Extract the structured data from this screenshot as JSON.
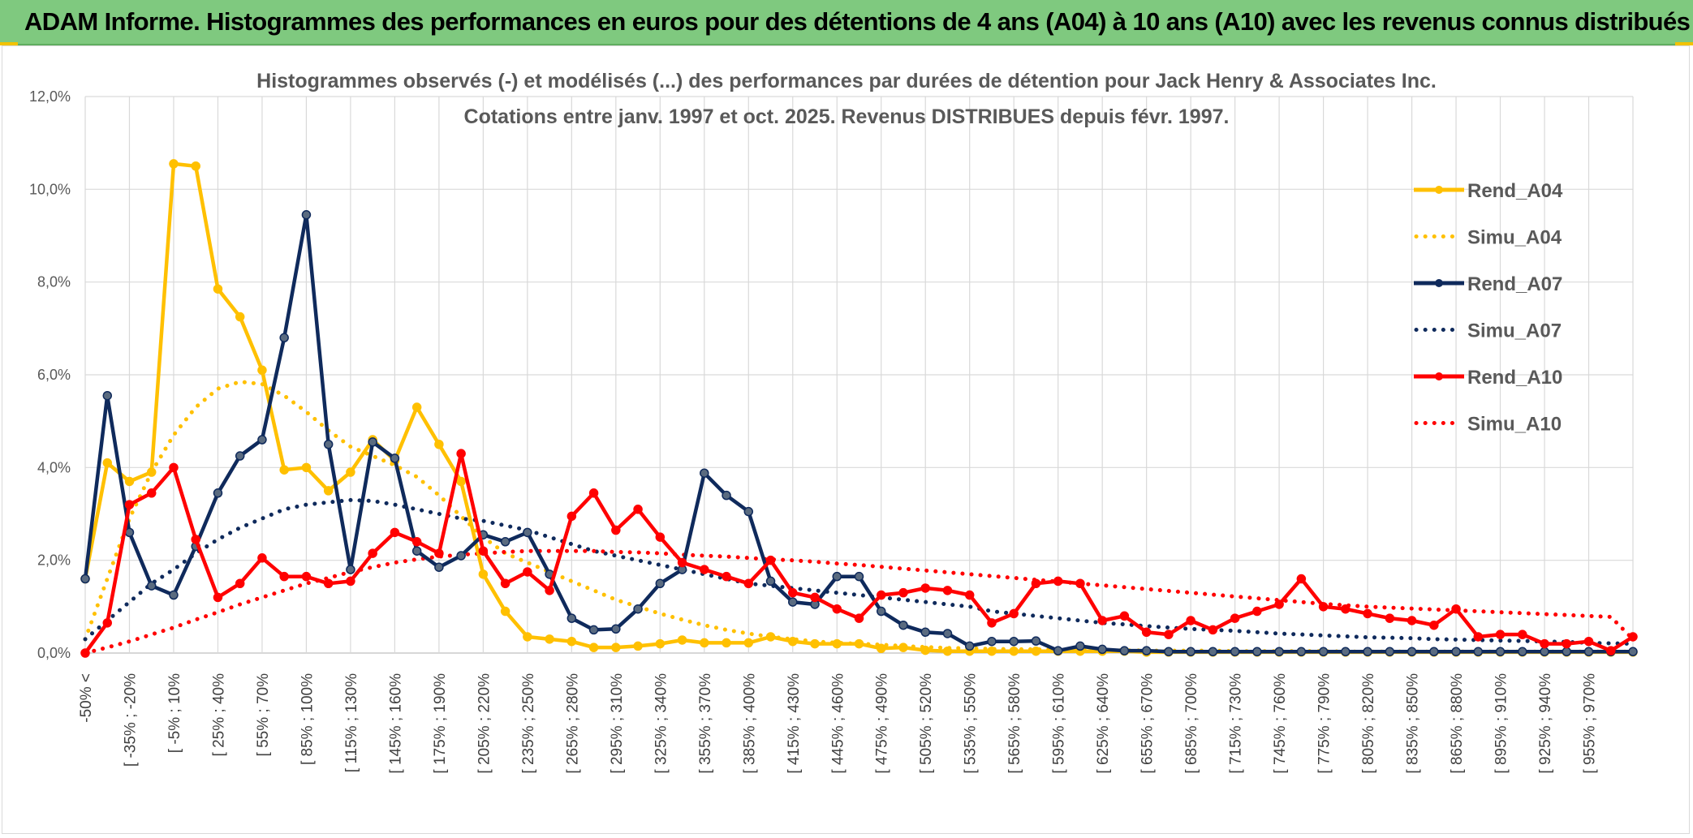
{
  "header": {
    "title": "ADAM Informe. Histogrammes des performances en euros pour des détentions de 4 ans (A04) à 10 ans (A10) avec les revenus connus distribués"
  },
  "colors": {
    "banner": "#7fc97f",
    "A04": "#ffc000",
    "A07": "#0f2a5c",
    "A10": "#ff0000",
    "grid": "#d9d9d9"
  },
  "chart_data": {
    "type": "line",
    "title": "Histogrammes observés (-) et modélisés (...) des performances par durées de détention pour Jack Henry & Associates Inc.",
    "subtitle": "Cotations entre janv. 1997 et oct. 2025. Revenus DISTRIBUES depuis févr. 1997.",
    "ylim": [
      0,
      12
    ],
    "y_ticks": [
      "0,0%",
      "2,0%",
      "4,0%",
      "6,0%",
      "8,0%",
      "10,0%",
      "12,0%"
    ],
    "grid": true,
    "legend_position": "right",
    "x_labels": [
      "-50% <",
      "[ -35% ; -20%",
      "[ -5% ; 10%",
      "[ 25% ; 40%",
      "[ 55% ; 70%",
      "[ 85% ; 100%",
      "[ 115% ; 130%",
      "[ 145% ; 160%",
      "[ 175% ; 190%",
      "[ 205% ; 220%",
      "[ 235% ; 250%",
      "[ 265% ; 280%",
      "[ 295% ; 310%",
      "[ 325% ; 340%",
      "[ 355% ; 370%",
      "[ 385% ; 400%",
      "[ 415% ; 430%",
      "[ 445% ; 460%",
      "[ 475% ; 490%",
      "[ 505% ; 520%",
      "[ 535% ; 550%",
      "[ 565% ; 580%",
      "[ 595% ; 610%",
      "[ 625% ; 640%",
      "[ 655% ; 670%",
      "[ 685% ; 700%",
      "[ 715% ; 730%",
      "[ 745% ; 760%",
      "[ 775% ; 790%",
      "[ 805% ; 820%",
      "[ 835% ; 850%",
      "[ 865% ; 880%",
      "[ 895% ; 910%",
      "[ 925% ; 940%",
      "[ 955% ; 970%"
    ],
    "series": [
      {
        "name": "Rend_A04",
        "style": "solid",
        "color": "#ffc000",
        "values": [
          1.6,
          4.1,
          3.7,
          3.9,
          10.55,
          10.5,
          7.85,
          7.25,
          6.1,
          3.95,
          4.0,
          3.5,
          3.9,
          4.6,
          4.15,
          5.3,
          4.5,
          3.7,
          1.7,
          0.9,
          0.35,
          0.3,
          0.25,
          0.12,
          0.12,
          0.15,
          0.2,
          0.28,
          0.22,
          0.22,
          0.22,
          0.35,
          0.25,
          0.2,
          0.2,
          0.2,
          0.1,
          0.12,
          0.06,
          0.04,
          0.04,
          0.04,
          0.04,
          0.04,
          0.04,
          0.04,
          0.04,
          0.04,
          0.02,
          0.02,
          0.02,
          0.02,
          0.02,
          0.02,
          0.02,
          0.02,
          0.02,
          0.02,
          0.02,
          0.02,
          0.02,
          0.02,
          0.02,
          0.02,
          0.02,
          0.02,
          0.02,
          0.02,
          0.02,
          0.02,
          0.02
        ]
      },
      {
        "name": "Simu_A04",
        "style": "dotted",
        "color": "#ffc000",
        "values": [
          0.3,
          1.6,
          2.9,
          3.9,
          4.7,
          5.3,
          5.7,
          5.85,
          5.8,
          5.55,
          5.2,
          4.8,
          4.45,
          4.25,
          4.05,
          3.8,
          3.4,
          2.95,
          2.5,
          2.15,
          1.95,
          1.75,
          1.55,
          1.35,
          1.15,
          1.0,
          0.85,
          0.72,
          0.6,
          0.5,
          0.42,
          0.35,
          0.3,
          0.25,
          0.22,
          0.2,
          0.18,
          0.15,
          0.13,
          0.11,
          0.1,
          0.09,
          0.08,
          0.08,
          0.07,
          0.07,
          0.06,
          0.06,
          0.05,
          0.05,
          0.05,
          0.05,
          0.04,
          0.04,
          0.04,
          0.04,
          0.04,
          0.03,
          0.03,
          0.03,
          0.03,
          0.03,
          0.03,
          0.03,
          0.03,
          0.03,
          0.03,
          0.03,
          0.03,
          0.03,
          0.03
        ]
      },
      {
        "name": "Rend_A07",
        "style": "solid",
        "color": "#0f2a5c",
        "values": [
          1.6,
          5.55,
          2.6,
          1.45,
          1.25,
          2.3,
          3.45,
          4.25,
          4.6,
          6.8,
          9.45,
          4.5,
          1.8,
          4.55,
          4.2,
          2.2,
          1.85,
          2.1,
          2.55,
          2.4,
          2.6,
          1.7,
          0.75,
          0.5,
          0.52,
          0.95,
          1.5,
          1.8,
          3.88,
          3.4,
          3.05,
          1.55,
          1.1,
          1.05,
          1.65,
          1.65,
          0.9,
          0.6,
          0.45,
          0.42,
          0.15,
          0.25,
          0.25,
          0.26,
          0.05,
          0.15,
          0.08,
          0.05,
          0.05,
          0.03,
          0.03,
          0.03,
          0.03,
          0.03,
          0.03,
          0.03,
          0.03,
          0.03,
          0.03,
          0.03,
          0.03,
          0.03,
          0.03,
          0.03,
          0.03,
          0.03,
          0.03,
          0.03,
          0.03,
          0.03,
          0.03
        ]
      },
      {
        "name": "Simu_A07",
        "style": "dotted",
        "color": "#0f2a5c",
        "values": [
          0.3,
          0.7,
          1.1,
          1.5,
          1.8,
          2.15,
          2.45,
          2.7,
          2.9,
          3.1,
          3.2,
          3.25,
          3.3,
          3.28,
          3.2,
          3.1,
          3.0,
          2.9,
          2.85,
          2.75,
          2.65,
          2.5,
          2.35,
          2.2,
          2.1,
          2.0,
          1.9,
          1.8,
          1.7,
          1.6,
          1.5,
          1.45,
          1.4,
          1.35,
          1.3,
          1.25,
          1.2,
          1.15,
          1.1,
          1.05,
          1.0,
          0.9,
          0.85,
          0.8,
          0.75,
          0.7,
          0.65,
          0.62,
          0.58,
          0.55,
          0.52,
          0.5,
          0.48,
          0.45,
          0.42,
          0.4,
          0.38,
          0.36,
          0.34,
          0.33,
          0.32,
          0.3,
          0.29,
          0.28,
          0.27,
          0.26,
          0.25,
          0.24,
          0.22,
          0.21,
          0.2
        ]
      },
      {
        "name": "Rend_A10",
        "style": "solid",
        "color": "#ff0000",
        "values": [
          0.0,
          0.65,
          3.2,
          3.45,
          4.0,
          2.45,
          1.2,
          1.5,
          2.05,
          1.65,
          1.65,
          1.5,
          1.55,
          2.15,
          2.6,
          2.4,
          2.15,
          4.3,
          2.2,
          1.5,
          1.75,
          1.35,
          2.95,
          3.45,
          2.65,
          3.1,
          2.5,
          1.95,
          1.8,
          1.65,
          1.5,
          2.0,
          1.3,
          1.2,
          0.95,
          0.75,
          1.25,
          1.3,
          1.4,
          1.35,
          1.25,
          0.65,
          0.85,
          1.5,
          1.55,
          1.5,
          0.7,
          0.8,
          0.45,
          0.4,
          0.7,
          0.5,
          0.75,
          0.9,
          1.05,
          1.6,
          1.0,
          0.95,
          0.85,
          0.75,
          0.7,
          0.6,
          0.95,
          0.35,
          0.4,
          0.4,
          0.2,
          0.2,
          0.25,
          0.05,
          0.35
        ]
      },
      {
        "name": "Simu_A10",
        "style": "dotted",
        "color": "#ff0000",
        "values": [
          0.0,
          0.12,
          0.25,
          0.4,
          0.55,
          0.72,
          0.88,
          1.05,
          1.2,
          1.35,
          1.5,
          1.62,
          1.75,
          1.85,
          1.95,
          2.02,
          2.08,
          2.12,
          2.15,
          2.18,
          2.2,
          2.2,
          2.2,
          2.2,
          2.18,
          2.17,
          2.15,
          2.12,
          2.1,
          2.08,
          2.05,
          2.02,
          2.0,
          1.97,
          1.93,
          1.9,
          1.86,
          1.82,
          1.78,
          1.74,
          1.7,
          1.66,
          1.62,
          1.58,
          1.54,
          1.5,
          1.46,
          1.42,
          1.38,
          1.34,
          1.3,
          1.26,
          1.22,
          1.18,
          1.14,
          1.1,
          1.06,
          1.03,
          1.0,
          0.98,
          0.96,
          0.94,
          0.92,
          0.9,
          0.88,
          0.86,
          0.84,
          0.82,
          0.8,
          0.78,
          0.3
        ]
      }
    ]
  }
}
